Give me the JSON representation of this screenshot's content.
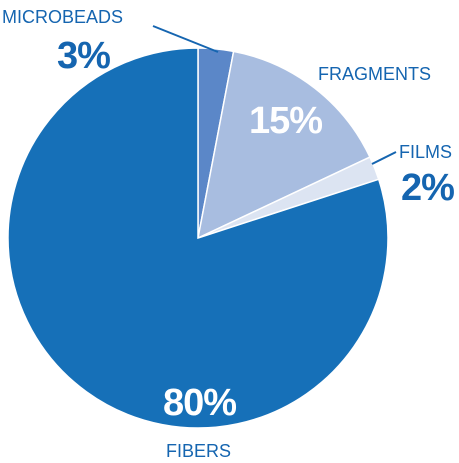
{
  "chart_data": {
    "type": "pie",
    "title": "",
    "slices": [
      {
        "label": "MICROBEADS",
        "value": 3,
        "value_label": "3%",
        "color": "#5b87c8"
      },
      {
        "label": "FRAGMENTS",
        "value": 15,
        "value_label": "15%",
        "color": "#a8bde0"
      },
      {
        "label": "FILMS",
        "value": 2,
        "value_label": "2%",
        "color": "#dce4f2"
      },
      {
        "label": "FIBERS",
        "value": 80,
        "value_label": "80%",
        "color": "#1670b8"
      }
    ],
    "label_color": "#1565b0",
    "percent_color_light": "#ffffff",
    "percent_color_dark": "#1565b0"
  }
}
